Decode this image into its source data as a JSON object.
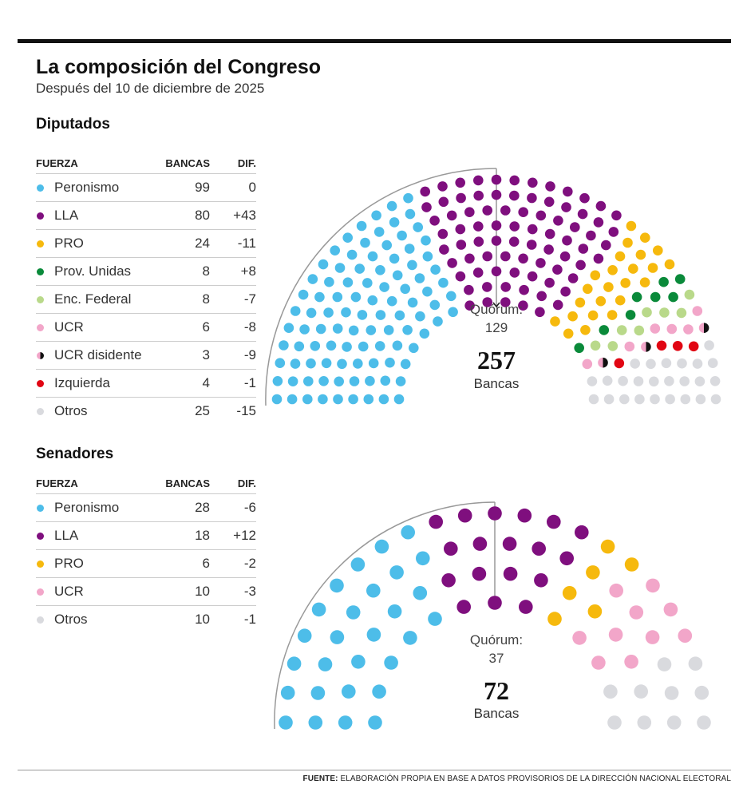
{
  "header": {
    "title": "La composición del Congreso",
    "subtitle": "Después del 10 de diciembre de 2025"
  },
  "columns": {
    "party": "FUERZA",
    "seats": "BANCAS",
    "diff": "DIF."
  },
  "footer": {
    "label": "FUENTE:",
    "text": " ELABORACIÓN PROPIA EN BASE A DATOS PROVISORIOS DE LA DIRECCIÓN NACIONAL ELECTORAL"
  },
  "chart_data": [
    {
      "type": "parliament",
      "title": "Diputados",
      "total": "257",
      "total_label": "Bancas",
      "quorum_label": "Quórum:",
      "quorum": "129",
      "parties": [
        {
          "name": "Peronismo",
          "seats": 99,
          "diff": "0",
          "color": "#4dbde9"
        },
        {
          "name": "LLA",
          "seats": 80,
          "diff": "+43",
          "color": "#7f0f7e"
        },
        {
          "name": "PRO",
          "seats": 24,
          "diff": "-11",
          "color": "#f6b90d"
        },
        {
          "name": "Prov. Unidas",
          "seats": 8,
          "diff": "+8",
          "color": "#0a8a3a"
        },
        {
          "name": "Enc. Federal",
          "seats": 8,
          "diff": "-7",
          "color": "#b9d98a"
        },
        {
          "name": "UCR",
          "seats": 6,
          "diff": "-8",
          "color": "#f2a6c9"
        },
        {
          "name": "UCR disidente",
          "seats": 3,
          "diff": "-9",
          "color": "half"
        },
        {
          "name": "Izquierda",
          "seats": 4,
          "diff": "-1",
          "color": "#e10613"
        },
        {
          "name": "Otros",
          "seats": 25,
          "diff": "-15",
          "color": "#d9dade"
        }
      ]
    },
    {
      "type": "parliament",
      "title": "Senadores",
      "total": "72",
      "total_label": "Bancas",
      "quorum_label": "Quórum:",
      "quorum": "37",
      "parties": [
        {
          "name": "Peronismo",
          "seats": 28,
          "diff": "-6",
          "color": "#4dbde9"
        },
        {
          "name": "LLA",
          "seats": 18,
          "diff": "+12",
          "color": "#7f0f7e"
        },
        {
          "name": "PRO",
          "seats": 6,
          "diff": "-2",
          "color": "#f6b90d"
        },
        {
          "name": "UCR",
          "seats": 10,
          "diff": "-3",
          "color": "#f2a6c9"
        },
        {
          "name": "Otros",
          "seats": 10,
          "diff": "-1",
          "color": "#d9dade"
        }
      ]
    }
  ]
}
